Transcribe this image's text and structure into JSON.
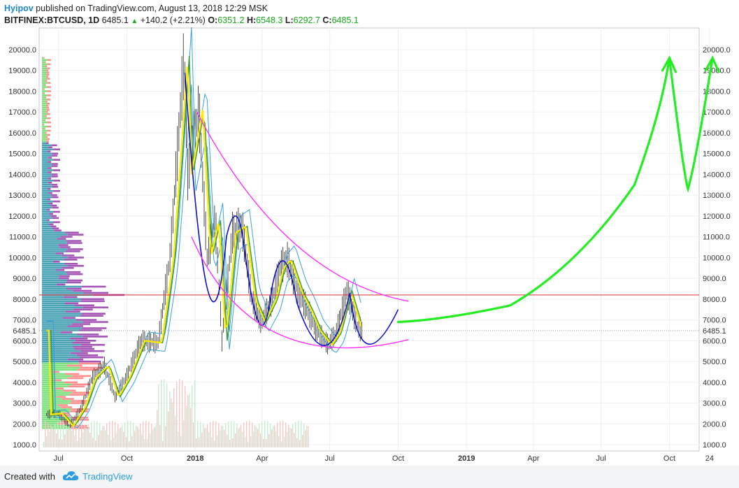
{
  "header": {
    "author": "Hyipov",
    "published": "published on TradingView.com, August 13, 2018 12:29 MSK",
    "symbol": "BITFINEX:BTCUSD, 1D",
    "last": "6485.1",
    "change": "+140.2 (+2.21%)",
    "o_label": "O:",
    "o": "6351.2",
    "h_label": "H:",
    "h": "6548.3",
    "l_label": "L:",
    "l": "6292.7",
    "c_label": "C:",
    "c": "6485.1"
  },
  "footer": {
    "created": "Created with",
    "brand": "TradingView"
  },
  "colors": {
    "grid": "#eef0f2",
    "axis": "#555555",
    "candle": "#222222",
    "ma_yellow": "#ffea00",
    "ma_green": "#3a9a3a",
    "ma_blue": "#36a2e0",
    "pattern_blue": "#1010c8",
    "funnel": "#ff30ff",
    "forecast": "#22ee22",
    "resistance": "#e03030",
    "vp_up": "#7fe07f",
    "vp_down": "#ff8f8f",
    "vp_teal": "#4aa3b4",
    "vp_purple": "#a455b5"
  },
  "chart_data": {
    "type": "line",
    "title": "BITFINEX:BTCUSD, 1D",
    "y_axis": {
      "min": 1000,
      "max": 20000,
      "ticks": [
        "20000.0",
        "19000.0",
        "18000.0",
        "17000.0",
        "16000.0",
        "15000.0",
        "14000.0",
        "13000.0",
        "12000.0",
        "11000.0",
        "10000.0",
        "9000.0",
        "8000.0",
        "7000.0",
        "6000.0",
        "5000.0",
        "4000.0",
        "3000.0",
        "2000.0",
        "1000.0"
      ],
      "current_label": "6485.1",
      "current_value": 6485.1
    },
    "x_axis": {
      "ticks": [
        "Jul",
        "Oct",
        "2018",
        "Apr",
        "Jul",
        "Oct",
        "2019",
        "Apr",
        "Jul",
        "Oct",
        "24"
      ],
      "bold_ticks": [
        "2018",
        "2019"
      ],
      "start": "2017-06-05",
      "end": "2019-11-10"
    },
    "grid": true,
    "series": [
      {
        "points": [
          [
            "2017-06-15",
            2450
          ],
          [
            "2017-07-01",
            2500
          ],
          [
            "2017-07-16",
            1900
          ],
          [
            "2017-08-01",
            2800
          ],
          [
            "2017-08-15",
            4200
          ],
          [
            "2017-09-01",
            4800
          ],
          [
            "2017-09-15",
            3300
          ],
          [
            "2017-10-01",
            4300
          ],
          [
            "2017-10-20",
            6000
          ],
          [
            "2017-11-12",
            5900
          ],
          [
            "2017-11-28",
            10000
          ],
          [
            "2017-12-08",
            15000
          ],
          [
            "2017-12-17",
            19700
          ],
          [
            "2017-12-22",
            14000
          ],
          [
            "2018-01-06",
            17100
          ],
          [
            "2018-01-17",
            10000
          ],
          [
            "2018-01-28",
            11800
          ],
          [
            "2018-02-06",
            6000
          ],
          [
            "2018-02-20",
            11200
          ],
          [
            "2018-03-05",
            11500
          ],
          [
            "2018-03-18",
            8000
          ],
          [
            "2018-03-31",
            6900
          ],
          [
            "2018-04-15",
            8000
          ],
          [
            "2018-04-25",
            9500
          ],
          [
            "2018-05-05",
            9900
          ],
          [
            "2018-05-20",
            8300
          ],
          [
            "2018-06-01",
            7500
          ],
          [
            "2018-06-13",
            6500
          ],
          [
            "2018-06-29",
            5800
          ],
          [
            "2018-07-10",
            6400
          ],
          [
            "2018-07-24",
            8400
          ],
          [
            "2018-08-07",
            6700
          ],
          [
            "2018-08-13",
            6485
          ]
        ]
      }
    ],
    "annotations": {
      "resistance_level": 8200,
      "price_forecast_path": [
        [
          "2018-10-01",
          6900
        ],
        [
          "2018-12-01",
          7000
        ],
        [
          "2019-03-01",
          7700
        ],
        [
          "2019-06-01",
          9600
        ],
        [
          "2019-08-15",
          13500
        ],
        [
          "2019-09-20",
          17000
        ],
        [
          "2019-10-01",
          19600
        ],
        [
          "2019-10-20",
          14000
        ],
        [
          "2019-10-26",
          13300
        ],
        [
          "2019-11-05",
          14500
        ],
        [
          "2019-11-28",
          19600
        ]
      ]
    }
  }
}
